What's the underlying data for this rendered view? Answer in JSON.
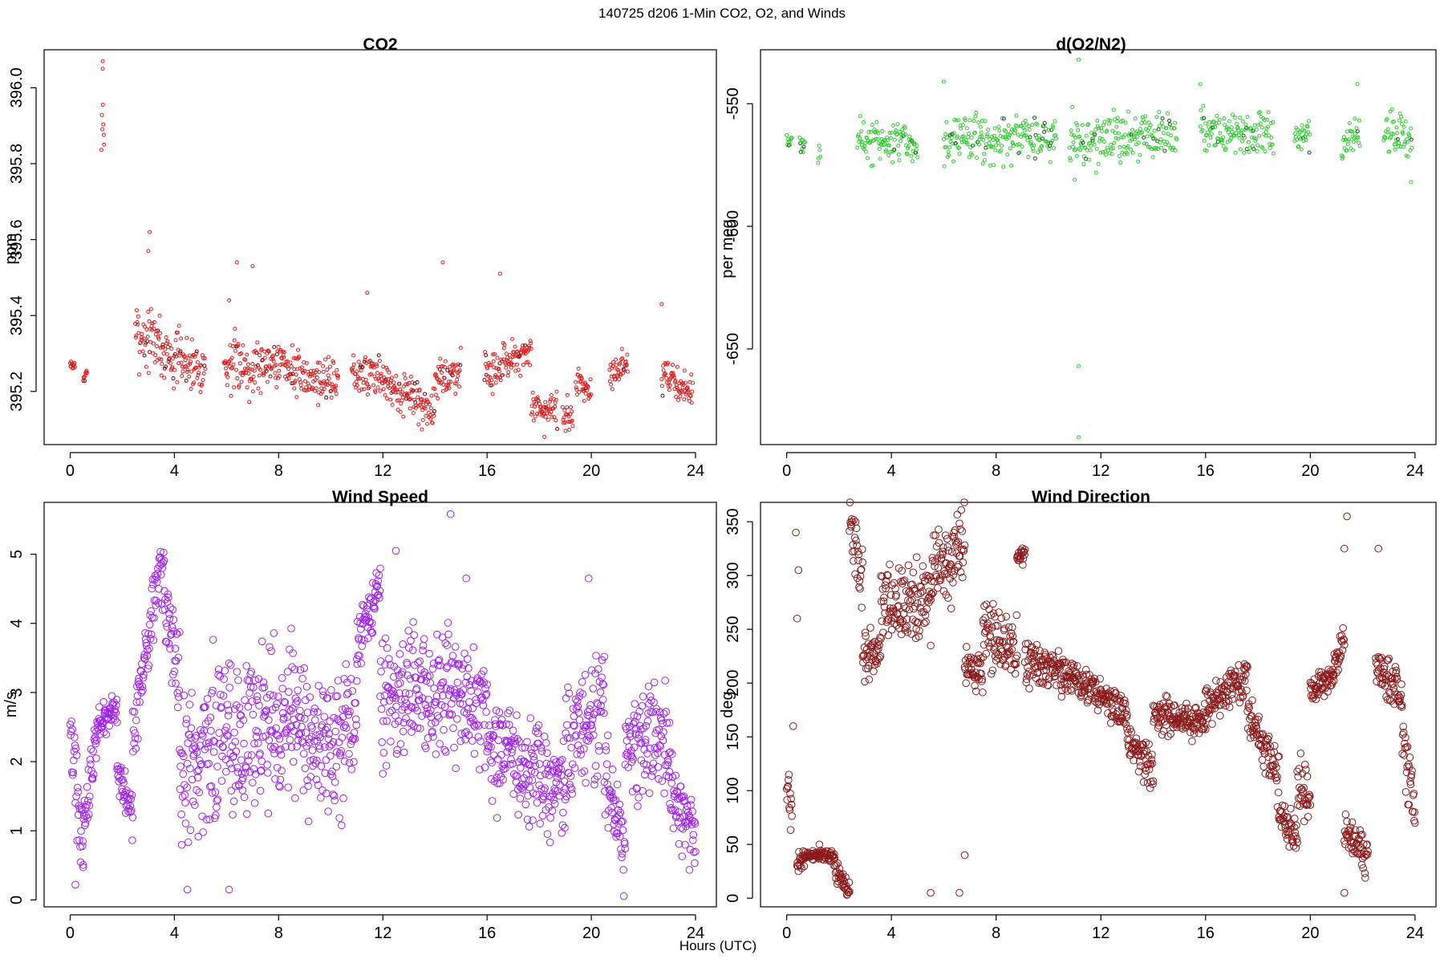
{
  "figure": {
    "suptitle": "140725   d206   1-Min CO2, O2, and Winds",
    "xlabel": "Hours (UTC)"
  },
  "panels": [
    {
      "id": "co2",
      "title": "CO2",
      "ylabel": "ppm",
      "ylim": [
        395.06,
        396.1
      ],
      "yticks": [
        "395.2",
        "395.4",
        "395.6",
        "395.8",
        "396.0"
      ],
      "color": "#e31a1c",
      "alt_color": "#7a0000"
    },
    {
      "id": "o2",
      "title": "d(O2/N2)",
      "ylabel": "per meg",
      "ylim": [
        -689,
        -528
      ],
      "yticks": [
        "-650",
        "-600",
        "-550"
      ],
      "color": "#2ecc2e",
      "alt_color": "#0a5a0a"
    },
    {
      "id": "ws",
      "title": "Wind Speed",
      "ylabel": "m/s",
      "ylim": [
        -0.1,
        5.75
      ],
      "yticks": [
        "0",
        "1",
        "2",
        "3",
        "4",
        "5"
      ],
      "color": "#a020f0",
      "alt_color": "#a020f0"
    },
    {
      "id": "wd",
      "title": "Wind Direction",
      "ylabel": "deg",
      "ylim": [
        -8,
        368
      ],
      "yticks": [
        "0",
        "50",
        "100",
        "150",
        "200",
        "250",
        "300",
        "350"
      ],
      "color": "#8b1a1a",
      "alt_color": "#8b1a1a"
    }
  ],
  "xticks": [
    "0",
    "4",
    "8",
    "12",
    "16",
    "20",
    "24"
  ],
  "chart_data": [
    {
      "type": "scatter",
      "title": "CO2",
      "xlabel": "",
      "ylabel": "ppm",
      "xlim": [
        -1,
        24.8
      ],
      "ylim": [
        395.06,
        396.1
      ],
      "grid": false,
      "segments": [
        {
          "x": [
            0.0,
            0.2
          ],
          "y": [
            395.27,
            395.27
          ],
          "spread": 0.015
        },
        {
          "x": [
            0.5,
            0.65
          ],
          "y": [
            395.23,
            395.25
          ],
          "spread": 0.012
        },
        {
          "x": [
            1.2,
            1.3
          ],
          "y": [
            395.93,
            395.93
          ],
          "spread": 0.09
        },
        {
          "x": [
            2.5,
            3.5
          ],
          "y": [
            395.35,
            395.33
          ],
          "spread": 0.07
        },
        {
          "x": [
            3.5,
            5.2
          ],
          "y": [
            395.3,
            395.26
          ],
          "spread": 0.06
        },
        {
          "x": [
            5.9,
            7.5
          ],
          "y": [
            395.27,
            395.27
          ],
          "spread": 0.07
        },
        {
          "x": [
            7.5,
            8.6
          ],
          "y": [
            395.29,
            395.26
          ],
          "spread": 0.05
        },
        {
          "x": [
            8.6,
            10.3
          ],
          "y": [
            395.24,
            395.23
          ],
          "spread": 0.05
        },
        {
          "x": [
            10.8,
            12.2
          ],
          "y": [
            395.26,
            395.23
          ],
          "spread": 0.05
        },
        {
          "x": [
            12.2,
            14.0
          ],
          "y": [
            395.21,
            395.16
          ],
          "spread": 0.05
        },
        {
          "x": [
            14.0,
            15.0
          ],
          "y": [
            395.23,
            395.25
          ],
          "spread": 0.05
        },
        {
          "x": [
            15.9,
            16.8
          ],
          "y": [
            395.25,
            395.28
          ],
          "spread": 0.05
        },
        {
          "x": [
            16.8,
            17.7
          ],
          "y": [
            395.28,
            395.3
          ],
          "spread": 0.04
        },
        {
          "x": [
            17.7,
            18.7
          ],
          "y": [
            395.16,
            395.15
          ],
          "spread": 0.04
        },
        {
          "x": [
            18.9,
            19.3
          ],
          "y": [
            395.12,
            395.15
          ],
          "spread": 0.05
        },
        {
          "x": [
            19.4,
            20.0
          ],
          "y": [
            395.23,
            395.2
          ],
          "spread": 0.04
        },
        {
          "x": [
            20.7,
            21.4
          ],
          "y": [
            395.25,
            395.27
          ],
          "spread": 0.04
        },
        {
          "x": [
            22.7,
            23.9
          ],
          "y": [
            395.24,
            395.2
          ],
          "spread": 0.04
        }
      ],
      "outliers": [
        [
          1.25,
          396.07
        ],
        [
          1.25,
          396.05
        ],
        [
          1.3,
          395.85
        ],
        [
          3.05,
          395.62
        ],
        [
          3.0,
          395.57
        ],
        [
          6.4,
          395.54
        ],
        [
          7.0,
          395.53
        ],
        [
          6.1,
          395.44
        ],
        [
          11.4,
          395.46
        ],
        [
          14.3,
          395.54
        ],
        [
          16.5,
          395.51
        ],
        [
          18.2,
          395.08
        ],
        [
          13.5,
          395.1
        ],
        [
          22.7,
          395.43
        ]
      ]
    },
    {
      "type": "scatter",
      "title": "d(O2/N2)",
      "xlabel": "",
      "ylabel": "per meg",
      "xlim": [
        -1,
        24.8
      ],
      "ylim": [
        -689,
        -528
      ],
      "grid": false,
      "segments": [
        {
          "x": [
            0.0,
            0.2
          ],
          "y": [
            -566,
            -566
          ],
          "spread": 4
        },
        {
          "x": [
            0.5,
            0.7
          ],
          "y": [
            -565,
            -565
          ],
          "spread": 4
        },
        {
          "x": [
            1.2,
            1.3
          ],
          "y": [
            -571,
            -571
          ],
          "spread": 4
        },
        {
          "x": [
            2.7,
            5.0
          ],
          "y": [
            -566,
            -566
          ],
          "spread": 8
        },
        {
          "x": [
            6.0,
            10.3
          ],
          "y": [
            -565,
            -564
          ],
          "spread": 8
        },
        {
          "x": [
            10.8,
            14.9
          ],
          "y": [
            -565,
            -563
          ],
          "spread": 9
        },
        {
          "x": [
            15.8,
            18.6
          ],
          "y": [
            -561,
            -564
          ],
          "spread": 8
        },
        {
          "x": [
            19.4,
            20.0
          ],
          "y": [
            -565,
            -562
          ],
          "spread": 6
        },
        {
          "x": [
            21.2,
            21.9
          ],
          "y": [
            -566,
            -562
          ],
          "spread": 6
        },
        {
          "x": [
            22.8,
            23.9
          ],
          "y": [
            -560,
            -565
          ],
          "spread": 8
        }
      ],
      "outliers": [
        [
          11.15,
          -532
        ],
        [
          11.15,
          -657
        ],
        [
          11.15,
          -686
        ],
        [
          6.0,
          -541
        ],
        [
          15.8,
          -542
        ],
        [
          21.8,
          -542
        ],
        [
          11.0,
          -581
        ],
        [
          23.85,
          -582
        ]
      ]
    },
    {
      "type": "scatter",
      "title": "Wind Speed",
      "xlabel": "",
      "ylabel": "m/s",
      "xlim": [
        -1,
        24.8
      ],
      "ylim": [
        -0.1,
        5.75
      ],
      "grid": false,
      "segments": [
        {
          "x": [
            0.0,
            0.5
          ],
          "y": [
            2.4,
            0.7
          ],
          "spread": 0.5
        },
        {
          "x": [
            0.5,
            1.0
          ],
          "y": [
            1.0,
            2.5
          ],
          "spread": 0.4
        },
        {
          "x": [
            1.0,
            1.8
          ],
          "y": [
            2.5,
            2.7
          ],
          "spread": 0.25
        },
        {
          "x": [
            1.8,
            2.4
          ],
          "y": [
            1.9,
            1.2
          ],
          "spread": 0.3
        },
        {
          "x": [
            2.4,
            3.5
          ],
          "y": [
            2.4,
            5.0
          ],
          "spread": 0.45
        },
        {
          "x": [
            3.5,
            4.2
          ],
          "y": [
            4.6,
            3.2
          ],
          "spread": 0.5
        },
        {
          "x": [
            4.2,
            8.5
          ],
          "y": [
            2.0,
            2.6
          ],
          "spread": 1.1
        },
        {
          "x": [
            8.5,
            11.0
          ],
          "y": [
            2.4,
            2.4
          ],
          "spread": 0.9
        },
        {
          "x": [
            11.0,
            11.9
          ],
          "y": [
            3.7,
            4.5
          ],
          "spread": 0.4
        },
        {
          "x": [
            11.9,
            16.0
          ],
          "y": [
            3.0,
            2.8
          ],
          "spread": 0.8
        },
        {
          "x": [
            16.0,
            19.0
          ],
          "y": [
            2.2,
            1.6
          ],
          "spread": 0.7
        },
        {
          "x": [
            19.0,
            20.5
          ],
          "y": [
            2.0,
            3.0
          ],
          "spread": 0.8
        },
        {
          "x": [
            20.5,
            21.3
          ],
          "y": [
            2.0,
            0.6
          ],
          "spread": 0.6
        },
        {
          "x": [
            21.3,
            23.0
          ],
          "y": [
            2.2,
            2.3
          ],
          "spread": 0.7
        },
        {
          "x": [
            23.0,
            24.0
          ],
          "y": [
            1.5,
            1.0
          ],
          "spread": 0.5
        }
      ],
      "outliers": [
        [
          14.6,
          5.58
        ],
        [
          15.2,
          4.65
        ],
        [
          19.9,
          4.65
        ],
        [
          12.5,
          5.05
        ],
        [
          4.5,
          0.15
        ],
        [
          6.1,
          0.15
        ],
        [
          0.2,
          0.22
        ]
      ]
    },
    {
      "type": "scatter",
      "title": "Wind Direction",
      "xlabel": "",
      "ylabel": "deg",
      "xlim": [
        -1,
        24.8
      ],
      "ylim": [
        -8,
        368
      ],
      "grid": false,
      "segments": [
        {
          "x": [
            0.0,
            0.2
          ],
          "y": [
            105,
            85
          ],
          "spread": 20
        },
        {
          "x": [
            0.4,
            0.7
          ],
          "y": [
            30,
            40
          ],
          "spread": 10
        },
        {
          "x": [
            0.7,
            1.8
          ],
          "y": [
            40,
            40
          ],
          "spread": 4
        },
        {
          "x": [
            1.8,
            2.4
          ],
          "y": [
            30,
            5
          ],
          "spread": 10
        },
        {
          "x": [
            2.4,
            2.9
          ],
          "y": [
            350,
            290
          ],
          "spread": 25
        },
        {
          "x": [
            2.9,
            3.6
          ],
          "y": [
            225,
            225
          ],
          "spread": 18
        },
        {
          "x": [
            3.6,
            5.5
          ],
          "y": [
            270,
            275
          ],
          "spread": 30
        },
        {
          "x": [
            5.5,
            6.8
          ],
          "y": [
            300,
            330
          ],
          "spread": 35
        },
        {
          "x": [
            6.8,
            7.5
          ],
          "y": [
            215,
            210
          ],
          "spread": 15
        },
        {
          "x": [
            7.5,
            8.8
          ],
          "y": [
            250,
            230
          ],
          "spread": 25
        },
        {
          "x": [
            8.8,
            9.1
          ],
          "y": [
            318,
            318
          ],
          "spread": 8
        },
        {
          "x": [
            9.1,
            10.5
          ],
          "y": [
            220,
            210
          ],
          "spread": 18
        },
        {
          "x": [
            10.5,
            13.0
          ],
          "y": [
            210,
            170
          ],
          "spread": 15
        },
        {
          "x": [
            13.0,
            14.0
          ],
          "y": [
            150,
            120
          ],
          "spread": 20
        },
        {
          "x": [
            14.0,
            16.0
          ],
          "y": [
            170,
            165
          ],
          "spread": 15
        },
        {
          "x": [
            16.0,
            17.6
          ],
          "y": [
            180,
            205
          ],
          "spread": 18
        },
        {
          "x": [
            17.6,
            18.8
          ],
          "y": [
            175,
            110
          ],
          "spread": 20
        },
        {
          "x": [
            18.8,
            19.5
          ],
          "y": [
            80,
            55
          ],
          "spread": 15
        },
        {
          "x": [
            19.5,
            20.0
          ],
          "y": [
            110,
            90
          ],
          "spread": 20
        },
        {
          "x": [
            20.0,
            20.9
          ],
          "y": [
            190,
            210
          ],
          "spread": 12
        },
        {
          "x": [
            20.9,
            21.3
          ],
          "y": [
            215,
            240
          ],
          "spread": 15
        },
        {
          "x": [
            21.3,
            22.2
          ],
          "y": [
            65,
            35
          ],
          "spread": 15
        },
        {
          "x": [
            22.5,
            23.5
          ],
          "y": [
            215,
            190
          ],
          "spread": 20
        },
        {
          "x": [
            23.5,
            24.0
          ],
          "y": [
            150,
            80
          ],
          "spread": 30
        }
      ],
      "outliers": [
        [
          0.35,
          340
        ],
        [
          0.45,
          305
        ],
        [
          0.4,
          260
        ],
        [
          0.25,
          160
        ],
        [
          5.5,
          5
        ],
        [
          6.6,
          5
        ],
        [
          6.8,
          40
        ],
        [
          21.4,
          355
        ],
        [
          21.3,
          325
        ],
        [
          21.3,
          5
        ],
        [
          22.6,
          325
        ],
        [
          1.25,
          50
        ]
      ]
    }
  ]
}
